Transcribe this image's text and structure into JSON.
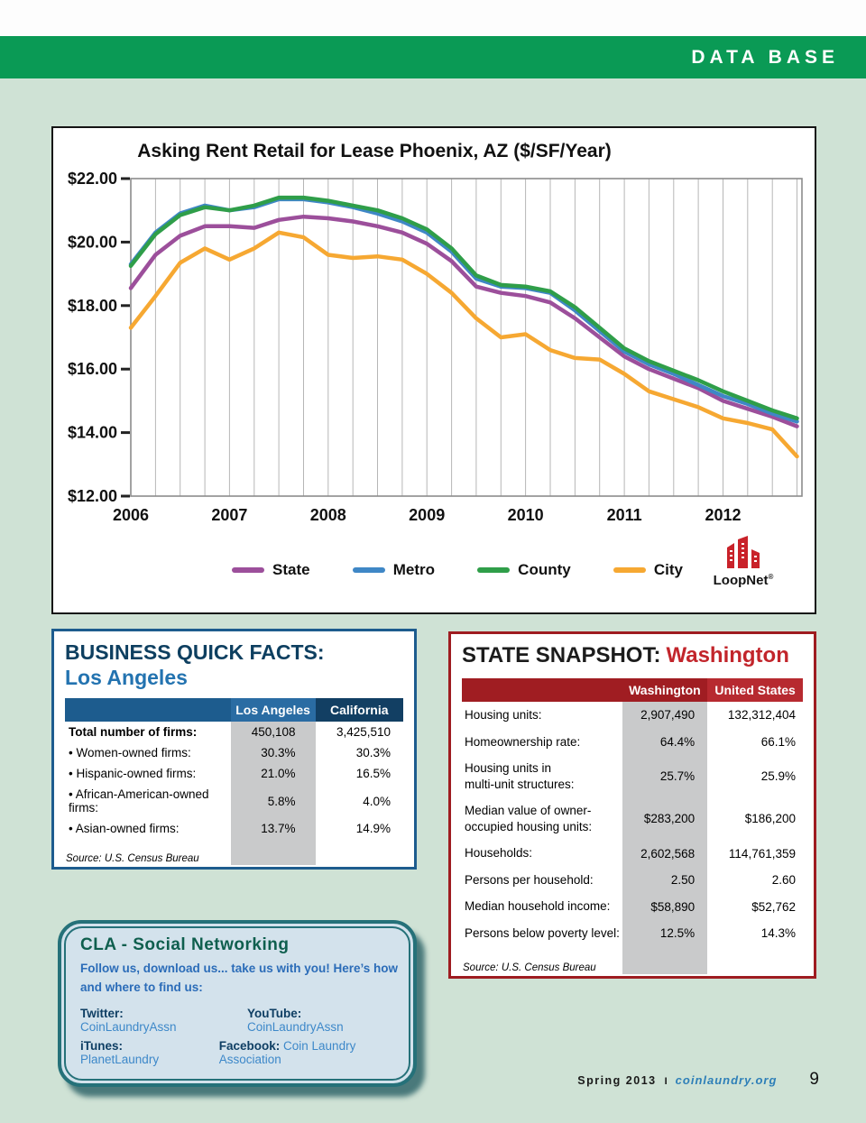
{
  "page": {
    "header": "DATA BASE",
    "footer": {
      "issue": "Spring 2013",
      "separator": "I",
      "site": "coinlaundry.org",
      "page_number": "9"
    }
  },
  "chart": {
    "logo_text": "LoopNet",
    "logo_reg": "®"
  },
  "chart_data": {
    "type": "line",
    "title": "Asking Rent Retail for Lease Phoenix, AZ ($/SF/Year)",
    "xlim": [
      2006,
      2012.8
    ],
    "ylim": [
      12,
      22
    ],
    "xticks": [
      2006,
      2007,
      2008,
      2009,
      2010,
      2011,
      2012
    ],
    "xtick_labels": [
      "2006",
      "2007",
      "2008",
      "2009",
      "2010",
      "2011",
      "2012"
    ],
    "yticks": [
      12,
      14,
      16,
      18,
      20,
      22
    ],
    "ytick_labels": [
      "$12.00",
      "$14.00",
      "$16.00",
      "$18.00",
      "$20.00",
      "$22.00"
    ],
    "grid": "vertical-quarterly",
    "legend_position": "bottom",
    "x": [
      2006,
      2006.25,
      2006.5,
      2006.75,
      2007,
      2007.25,
      2007.5,
      2007.75,
      2008,
      2008.25,
      2008.5,
      2008.75,
      2009,
      2009.25,
      2009.5,
      2009.75,
      2010,
      2010.25,
      2010.5,
      2010.75,
      2011,
      2011.25,
      2011.5,
      2011.75,
      2012,
      2012.25,
      2012.5,
      2012.75
    ],
    "series": [
      {
        "name": "State",
        "color": "#9c4f9b",
        "values": [
          18.55,
          19.6,
          20.2,
          20.5,
          20.5,
          20.45,
          20.7,
          20.8,
          20.75,
          20.65,
          20.5,
          20.3,
          19.95,
          19.4,
          18.6,
          18.4,
          18.3,
          18.1,
          17.6,
          17.0,
          16.4,
          16.0,
          15.7,
          15.4,
          15.0,
          14.75,
          14.5,
          14.2
        ]
      },
      {
        "name": "Metro",
        "color": "#3f87c6",
        "values": [
          19.3,
          20.3,
          20.9,
          21.15,
          21.0,
          21.1,
          21.35,
          21.35,
          21.25,
          21.1,
          20.9,
          20.65,
          20.3,
          19.7,
          18.85,
          18.6,
          18.55,
          18.4,
          17.85,
          17.2,
          16.55,
          16.15,
          15.85,
          15.5,
          15.15,
          14.9,
          14.6,
          14.35
        ]
      },
      {
        "name": "County",
        "color": "#2f9e49",
        "values": [
          19.25,
          20.25,
          20.85,
          21.1,
          21.0,
          21.15,
          21.4,
          21.4,
          21.3,
          21.15,
          21.0,
          20.75,
          20.4,
          19.8,
          18.95,
          18.65,
          18.6,
          18.45,
          17.95,
          17.3,
          16.65,
          16.25,
          15.95,
          15.65,
          15.3,
          15.0,
          14.7,
          14.45
        ]
      },
      {
        "name": "City",
        "color": "#f6a832",
        "values": [
          17.3,
          18.3,
          19.35,
          19.8,
          19.45,
          19.8,
          20.3,
          20.15,
          19.6,
          19.5,
          19.55,
          19.45,
          19.0,
          18.4,
          17.6,
          17.0,
          17.1,
          16.6,
          16.35,
          16.3,
          15.85,
          15.3,
          15.05,
          14.8,
          14.45,
          14.3,
          14.1,
          13.25
        ]
      }
    ]
  },
  "business_facts": {
    "title_line1": "BUSINESS QUICK FACTS:",
    "title_line2": "Los Angeles",
    "columns": [
      "Los Angeles",
      "California"
    ],
    "rows": [
      {
        "label": "Total number of firms:",
        "emphasis": true,
        "la": "450,108",
        "ca": "3,425,510"
      },
      {
        "label": "• Women-owned firms:",
        "emphasis": false,
        "la": "30.3%",
        "ca": "30.3%"
      },
      {
        "label": "• Hispanic-owned firms:",
        "emphasis": false,
        "la": "21.0%",
        "ca": "16.5%"
      },
      {
        "label": "• African-American-owned firms:",
        "emphasis": false,
        "la": "5.8%",
        "ca": "4.0%"
      },
      {
        "label": "• Asian-owned firms:",
        "emphasis": false,
        "la": "13.7%",
        "ca": "14.9%"
      }
    ],
    "source": "Source: U.S. Census Bureau"
  },
  "state_snapshot": {
    "title_prefix": "STATE SNAPSHOT:",
    "title_state": "Washington",
    "columns": [
      "Washington",
      "United States"
    ],
    "rows": [
      {
        "label": "Housing units:",
        "wa": "2,907,490",
        "us": "132,312,404"
      },
      {
        "label": "Homeownership rate:",
        "wa": "64.4%",
        "us": "66.1%"
      },
      {
        "label": "Housing units in\nmulti-unit structures:",
        "wa": "25.7%",
        "us": "25.9%"
      },
      {
        "label": "Median value of owner-\noccupied housing units:",
        "wa": "$283,200",
        "us": "$186,200"
      },
      {
        "label": "Households:",
        "wa": "2,602,568",
        "us": "114,761,359"
      },
      {
        "label": "Persons per household:",
        "wa": "2.50",
        "us": "2.60"
      },
      {
        "label": "Median household income:",
        "wa": "$58,890",
        "us": "$52,762"
      },
      {
        "label": "Persons below poverty level:",
        "wa": "12.5%",
        "us": "14.3%"
      }
    ],
    "source": "Source: U.S. Census Bureau"
  },
  "cla": {
    "title": "CLA - Social Networking",
    "intro": "Follow us, download us... take us with you! Here’s how and where to find us:",
    "links": [
      {
        "label": "Twitter:",
        "value": "CoinLaundryAssn"
      },
      {
        "label": "YouTube:",
        "value": "CoinLaundryAssn"
      },
      {
        "label": "iTunes:",
        "value": "PlanetLaundry"
      },
      {
        "label": "Facebook:",
        "value": "Coin Laundry Association"
      }
    ]
  }
}
